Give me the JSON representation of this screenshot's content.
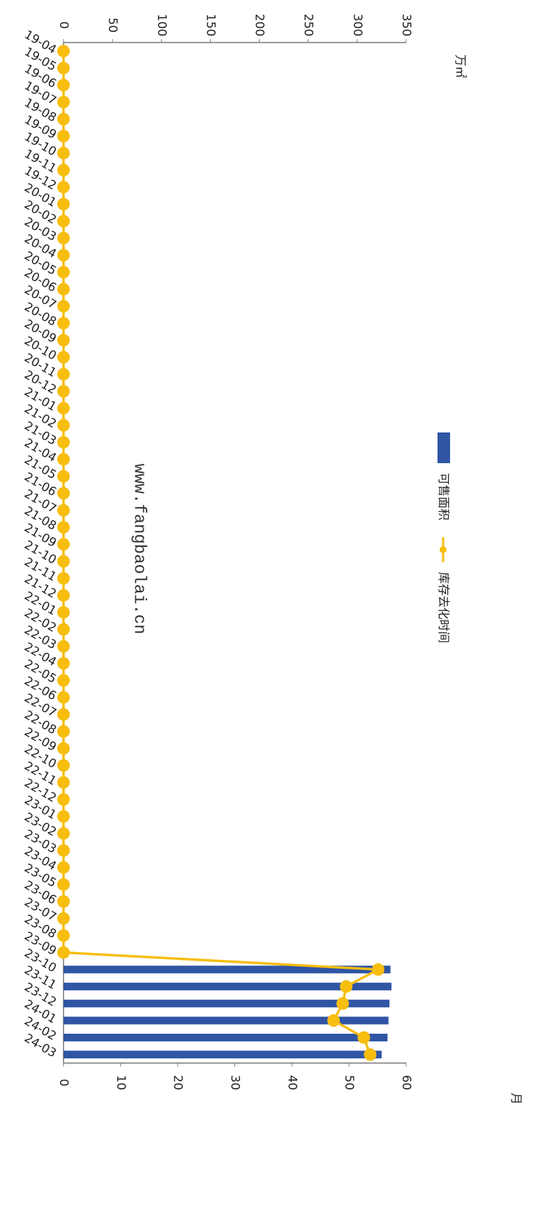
{
  "chart_data": {
    "type": "bar_line",
    "y_label": "万㎡",
    "y2_label": "月",
    "watermark": "www.fangbaolai.cn",
    "categories": [
      "19-04",
      "19-05",
      "19-06",
      "19-07",
      "19-08",
      "19-09",
      "19-10",
      "19-11",
      "19-12",
      "20-01",
      "20-02",
      "20-03",
      "20-04",
      "20-05",
      "20-06",
      "20-07",
      "20-08",
      "20-09",
      "20-10",
      "20-11",
      "20-12",
      "21-01",
      "21-02",
      "21-03",
      "21-04",
      "21-05",
      "21-06",
      "21-07",
      "21-08",
      "21-09",
      "21-10",
      "21-11",
      "21-12",
      "22-01",
      "22-02",
      "22-03",
      "22-04",
      "22-05",
      "22-06",
      "22-07",
      "22-08",
      "22-09",
      "22-10",
      "22-11",
      "22-12",
      "23-01",
      "23-02",
      "23-03",
      "23-04",
      "23-05",
      "23-06",
      "23-07",
      "23-08",
      "23-09",
      "23-10",
      "23-11",
      "23-12",
      "24-01",
      "24-02",
      "24-03"
    ],
    "series": [
      {
        "name": "可售面积",
        "type": "bar",
        "color": "#2f55a4",
        "values": [
          0,
          0,
          0,
          0,
          0,
          0,
          0,
          0,
          0,
          0,
          0,
          0,
          0,
          0,
          0,
          0,
          0,
          0,
          0,
          0,
          0,
          0,
          0,
          0,
          0,
          0,
          0,
          0,
          0,
          0,
          0,
          0,
          0,
          0,
          0,
          0,
          0,
          0,
          0,
          0,
          0,
          0,
          0,
          0,
          0,
          0,
          0,
          0,
          0,
          0,
          0,
          0,
          0,
          0,
          334,
          335,
          333,
          332,
          331,
          325
        ]
      },
      {
        "name": "库存去化时间",
        "type": "line",
        "axis": "y2",
        "color": "#f7bd0f",
        "values": [
          0,
          0,
          0,
          0,
          0,
          0,
          0,
          0,
          0,
          0,
          0,
          0,
          0,
          0,
          0,
          0,
          0,
          0,
          0,
          0,
          0,
          0,
          0,
          0,
          0,
          0,
          0,
          0,
          0,
          0,
          0,
          0,
          0,
          0,
          0,
          0,
          0,
          0,
          0,
          0,
          0,
          0,
          0,
          0,
          0,
          0,
          0,
          0,
          0,
          0,
          0,
          0,
          0,
          0,
          55.1,
          49.5,
          48.9,
          47.3,
          52.6,
          53.7
        ]
      }
    ],
    "ylim": [
      0,
      350
    ],
    "yticks": [
      0,
      50,
      100,
      150,
      200,
      250,
      300,
      350
    ],
    "y2lim": [
      0,
      60
    ],
    "y2ticks": [
      0,
      10,
      20,
      30,
      40,
      50,
      60
    ]
  }
}
